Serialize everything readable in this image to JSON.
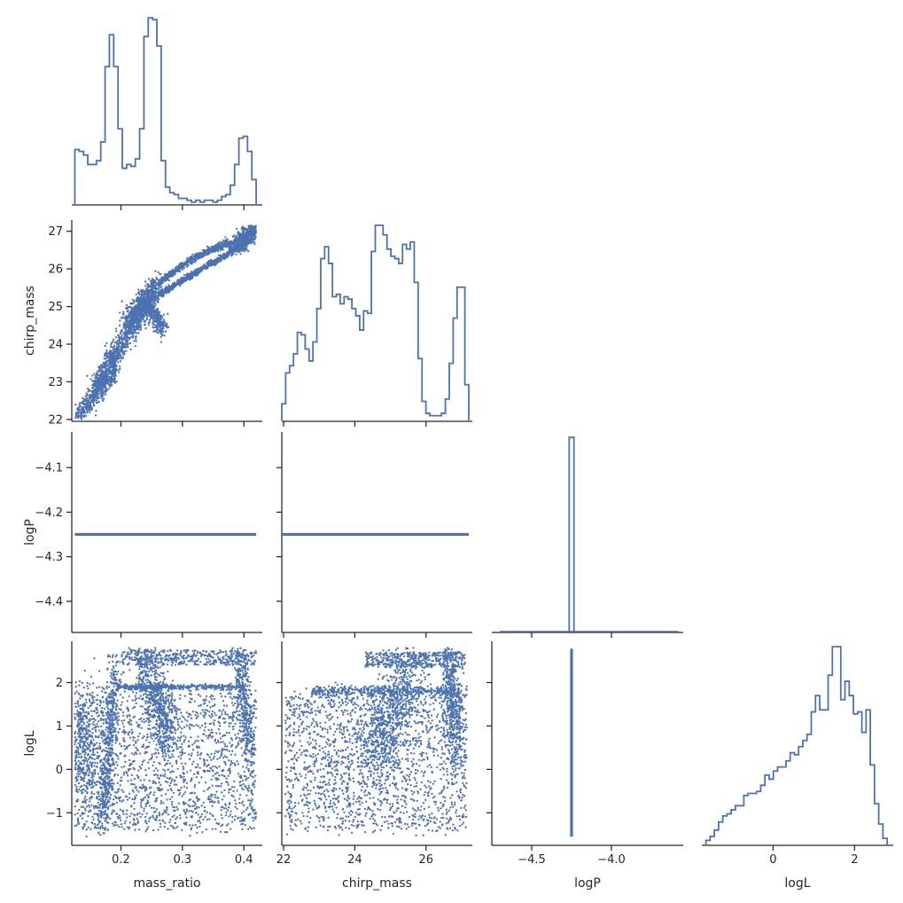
{
  "chart_data": {
    "type": "pairplot",
    "variables": [
      "mass_ratio",
      "chirp_mass",
      "logP",
      "logL"
    ],
    "color": "#4c72b0",
    "axis_color": "#262626",
    "lower_kind": "scatter",
    "diag_kind": "step-histogram",
    "upper_triangle": "hidden",
    "axes": {
      "mass_ratio": {
        "range": [
          0.12,
          0.43
        ],
        "ticks": [
          0.2,
          0.3,
          0.4
        ],
        "tick_labels": [
          "0.2",
          "0.3",
          "0.4"
        ],
        "label": "mass_ratio"
      },
      "chirp_mass": {
        "range": [
          21.95,
          27.3
        ],
        "ticks": [
          22,
          23,
          24,
          25,
          26,
          27
        ],
        "tick_labels": [
          "22",
          "23",
          "24",
          "25",
          "26",
          "27"
        ],
        "x_ticks": [
          22,
          24,
          26
        ],
        "x_tick_labels": [
          "22",
          "24",
          "26"
        ],
        "label": "chirp_mass"
      },
      "logP": {
        "range": [
          -4.75,
          -3.55
        ],
        "y_range": [
          -4.47,
          -4.02
        ],
        "x_ticks": [
          -4.5,
          -4.0
        ],
        "x_tick_labels": [
          "−4.5",
          "−4.0"
        ],
        "y_ticks": [
          -4.4,
          -4.3,
          -4.2,
          -4.1
        ],
        "y_tick_labels": [
          "−4.4",
          "−4.3",
          "−4.2",
          "−4.1"
        ],
        "label": "logP"
      },
      "logL": {
        "range": [
          -1.75,
          2.95
        ],
        "ticks": [
          -1,
          0,
          1,
          2
        ],
        "tick_labels": [
          "−1",
          "0",
          "1",
          "2"
        ],
        "x_ticks": [
          0,
          2
        ],
        "x_tick_labels": [
          "0",
          "2"
        ],
        "label": "logL"
      }
    },
    "logP_value": -4.25,
    "histograms": {
      "mass_ratio": {
        "range": [
          0.125,
          0.42
        ],
        "counts": [
          29,
          28,
          26,
          21,
          21,
          23,
          33,
          73,
          90,
          73,
          40,
          19,
          21,
          20,
          24,
          40,
          89,
          99,
          98,
          84,
          23,
          9,
          6,
          5,
          3,
          3,
          2,
          1,
          2,
          1,
          2,
          2,
          1,
          2,
          4,
          5,
          10,
          21,
          35,
          36,
          28,
          13
        ]
      },
      "chirp_mass": {
        "range": [
          21.95,
          27.2
        ],
        "counts": [
          7,
          20,
          23,
          28,
          37,
          36,
          30,
          25,
          33,
          47,
          68,
          73,
          66,
          52,
          53,
          49,
          52,
          51,
          47,
          44,
          38,
          46,
          45,
          71,
          82,
          82,
          78,
          72,
          69,
          68,
          66,
          74,
          72,
          75,
          58,
          26,
          8,
          3,
          2,
          2,
          2,
          3,
          9,
          24,
          43,
          56,
          56,
          15
        ]
      },
      "logP": {
        "range": [
          -4.265,
          -4.235
        ],
        "counts": [
          100
        ]
      },
      "logL": {
        "range": [
          -1.65,
          2.8
        ],
        "counts": [
          2,
          4,
          7,
          11,
          14,
          15,
          17,
          19,
          19,
          24,
          25,
          25,
          26,
          29,
          34,
          32,
          36,
          38,
          38,
          41,
          45,
          44,
          48,
          51,
          54,
          65,
          73,
          66,
          66,
          83,
          97,
          97,
          71,
          80,
          73,
          64,
          65,
          55,
          66,
          39,
          20,
          10,
          3
        ]
      }
    }
  }
}
